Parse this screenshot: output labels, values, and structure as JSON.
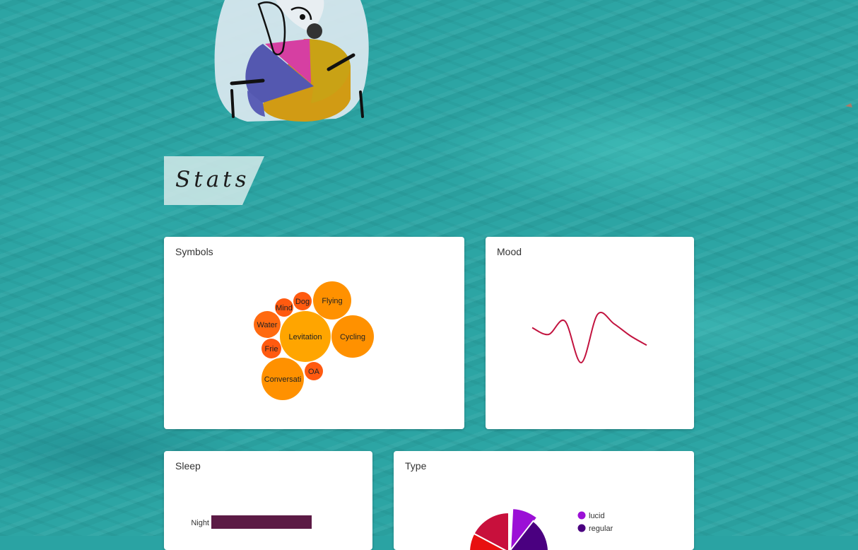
{
  "header": {
    "stats_label": "Stats"
  },
  "cards": {
    "symbols": {
      "title": "Symbols"
    },
    "mood": {
      "title": "Mood"
    },
    "sleep": {
      "title": "Sleep"
    },
    "type": {
      "title": "Type"
    }
  },
  "chart_data": [
    {
      "type": "bubble",
      "title": "Symbols",
      "bubbles": [
        {
          "label": "Levitation",
          "rank": 1,
          "color": "#ffa500"
        },
        {
          "label": "Conversati",
          "rank": 2,
          "color": "#ff9100"
        },
        {
          "label": "Cycling",
          "rank": 2,
          "color": "#ff9100"
        },
        {
          "label": "Flying",
          "rank": 3,
          "color": "#ff9100"
        },
        {
          "label": "Water",
          "rank": 4,
          "color": "#ff6a10"
        },
        {
          "label": "OA",
          "rank": 5,
          "color": "#ff5a10"
        },
        {
          "label": "Mind",
          "rank": 5,
          "color": "#ff5a10"
        },
        {
          "label": "Dog",
          "rank": 5,
          "color": "#ff5a10"
        },
        {
          "label": "Frie",
          "rank": 5,
          "color": "#ff5a10"
        }
      ]
    },
    {
      "type": "line",
      "title": "Mood",
      "x": [
        0,
        1,
        2,
        3,
        4,
        5,
        6,
        7
      ],
      "values": [
        0.3,
        0.05,
        0.55,
        -1.0,
        0.8,
        0.45,
        0.0,
        -0.35
      ],
      "ylim": [
        -1,
        1
      ],
      "color": "#c2133f"
    },
    {
      "type": "bar",
      "title": "Sleep",
      "categories": [
        "Night"
      ],
      "values": [
        1.0
      ],
      "color": "#5c1a45"
    },
    {
      "type": "pie",
      "title": "Type",
      "legend": [
        "lucid",
        "regular"
      ],
      "colors": {
        "lucid": "#9b10d6",
        "regular": "#4a0080"
      },
      "other_colors": [
        "#c8103c",
        "#e81010"
      ]
    }
  ]
}
